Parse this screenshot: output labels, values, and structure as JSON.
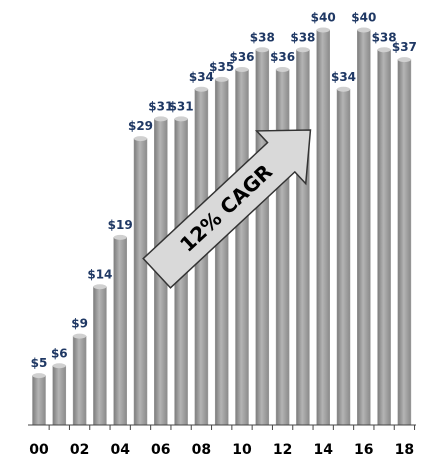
{
  "chart_data": {
    "type": "bar",
    "categories": [
      "00",
      null,
      "02",
      null,
      "04",
      null,
      "06",
      null,
      "08",
      null,
      "10",
      null,
      "12",
      null,
      "14",
      null,
      "16",
      null,
      "18"
    ],
    "values": [
      5,
      6,
      9,
      14,
      19,
      29,
      31,
      31,
      34,
      35,
      36,
      38,
      36,
      38,
      40,
      34,
      40,
      38,
      37
    ],
    "value_labels": [
      "$5",
      "$6",
      "$9",
      "$14",
      "$19",
      "$29",
      "$31",
      "$31",
      "$34",
      "$35",
      "$36",
      "$38",
      "$36",
      "$38",
      "$40",
      "$34",
      "$40",
      "$38",
      "$37"
    ],
    "color": "#9a9a9a",
    "annotation": "12% CAGR"
  }
}
